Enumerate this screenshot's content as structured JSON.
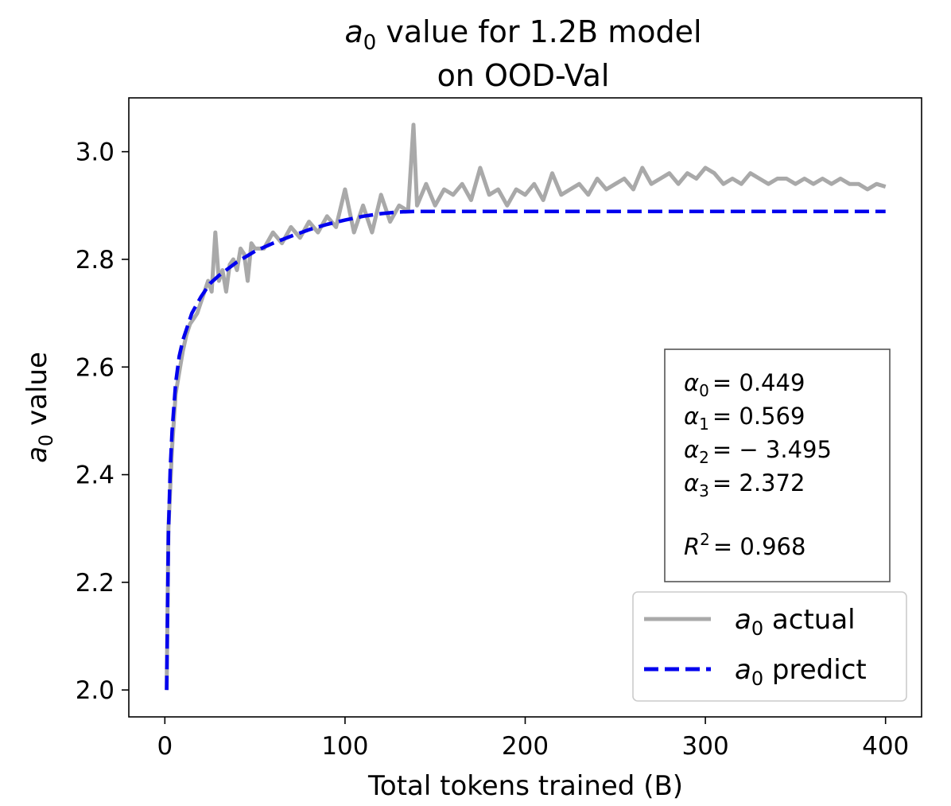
{
  "chart_data": {
    "type": "line",
    "title_line1_var": "a",
    "title_line1_sub": "0",
    "title_line1_rest": " value for 1.2B model",
    "title_line2": "on OOD-Val",
    "xlabel": "Total tokens trained (B)",
    "ylabel_var": "a",
    "ylabel_sub": "0",
    "ylabel_rest": " value",
    "xlim": [
      -20,
      420
    ],
    "ylim": [
      1.95,
      3.1
    ],
    "xticks": [
      0,
      100,
      200,
      300,
      400
    ],
    "xtick_labels": [
      "0",
      "100",
      "200",
      "300",
      "400"
    ],
    "yticks": [
      2.0,
      2.2,
      2.4,
      2.6,
      2.8,
      3.0
    ],
    "ytick_labels": [
      "2.0",
      "2.2",
      "2.4",
      "2.6",
      "2.8",
      "3.0"
    ],
    "legend": [
      {
        "var": "a",
        "sub": "0",
        "rest": " actual",
        "color": "#a9a9a9",
        "style": "solid"
      },
      {
        "var": "a",
        "sub": "0",
        "rest": " predict",
        "color": "#0000ee",
        "style": "dashed"
      }
    ],
    "annotation": {
      "lines": [
        {
          "sym": "α",
          "sub": "0",
          "value": "= 0.449"
        },
        {
          "sym": "α",
          "sub": "1",
          "value": "= 0.569"
        },
        {
          "sym": "α",
          "sub": "2",
          "value": "= − 3.495"
        },
        {
          "sym": "α",
          "sub": "3",
          "value": "= 2.372"
        }
      ],
      "r2_sym": "R",
      "r2_sup": "2",
      "r2_value": "= 0.968"
    },
    "series": [
      {
        "name": "a0 actual",
        "color": "#a9a9a9",
        "x": [
          1,
          2,
          4,
          6,
          8,
          10,
          12,
          14,
          16,
          18,
          20,
          22,
          24,
          26,
          28,
          30,
          32,
          34,
          36,
          38,
          40,
          42,
          44,
          46,
          48,
          50,
          55,
          60,
          65,
          70,
          75,
          80,
          85,
          90,
          95,
          100,
          105,
          110,
          115,
          120,
          125,
          130,
          135,
          138,
          140,
          145,
          150,
          155,
          160,
          165,
          170,
          175,
          180,
          185,
          190,
          195,
          200,
          205,
          210,
          215,
          220,
          225,
          230,
          235,
          240,
          245,
          250,
          255,
          260,
          265,
          270,
          275,
          280,
          285,
          290,
          295,
          300,
          305,
          310,
          315,
          320,
          325,
          330,
          335,
          340,
          345,
          350,
          355,
          360,
          365,
          370,
          375,
          380,
          385,
          390,
          395,
          400
        ],
        "y": [
          2.0,
          2.3,
          2.45,
          2.55,
          2.59,
          2.63,
          2.66,
          2.68,
          2.69,
          2.7,
          2.72,
          2.74,
          2.76,
          2.74,
          2.85,
          2.76,
          2.78,
          2.74,
          2.79,
          2.8,
          2.78,
          2.82,
          2.81,
          2.76,
          2.83,
          2.82,
          2.82,
          2.85,
          2.83,
          2.86,
          2.84,
          2.87,
          2.85,
          2.88,
          2.86,
          2.93,
          2.85,
          2.9,
          2.85,
          2.92,
          2.87,
          2.9,
          2.89,
          3.05,
          2.9,
          2.94,
          2.9,
          2.93,
          2.92,
          2.94,
          2.91,
          2.97,
          2.92,
          2.93,
          2.9,
          2.93,
          2.92,
          2.94,
          2.91,
          2.96,
          2.92,
          2.93,
          2.94,
          2.92,
          2.95,
          2.93,
          2.94,
          2.95,
          2.93,
          2.97,
          2.94,
          2.95,
          2.96,
          2.94,
          2.96,
          2.95,
          2.97,
          2.96,
          2.94,
          2.95,
          2.94,
          2.96,
          2.95,
          2.94,
          2.95,
          2.95,
          2.94,
          2.95,
          2.94,
          2.95,
          2.94,
          2.95,
          2.94,
          2.94,
          2.93,
          2.94,
          2.935
        ]
      },
      {
        "name": "a0 predict",
        "color": "#0000ee",
        "x": [
          1,
          2,
          3,
          4,
          6,
          8,
          10,
          12,
          15,
          20,
          25,
          30,
          40,
          50,
          60,
          70,
          80,
          90,
          100,
          110,
          120,
          130,
          140,
          150,
          200,
          250,
          300,
          350,
          400
        ],
        "y": [
          2.0,
          2.29,
          2.41,
          2.48,
          2.57,
          2.62,
          2.65,
          2.67,
          2.7,
          2.73,
          2.755,
          2.77,
          2.795,
          2.815,
          2.83,
          2.843,
          2.855,
          2.865,
          2.873,
          2.88,
          2.885,
          2.888,
          2.889,
          2.889,
          2.889,
          2.889,
          2.889,
          2.889,
          2.889
        ]
      }
    ]
  }
}
